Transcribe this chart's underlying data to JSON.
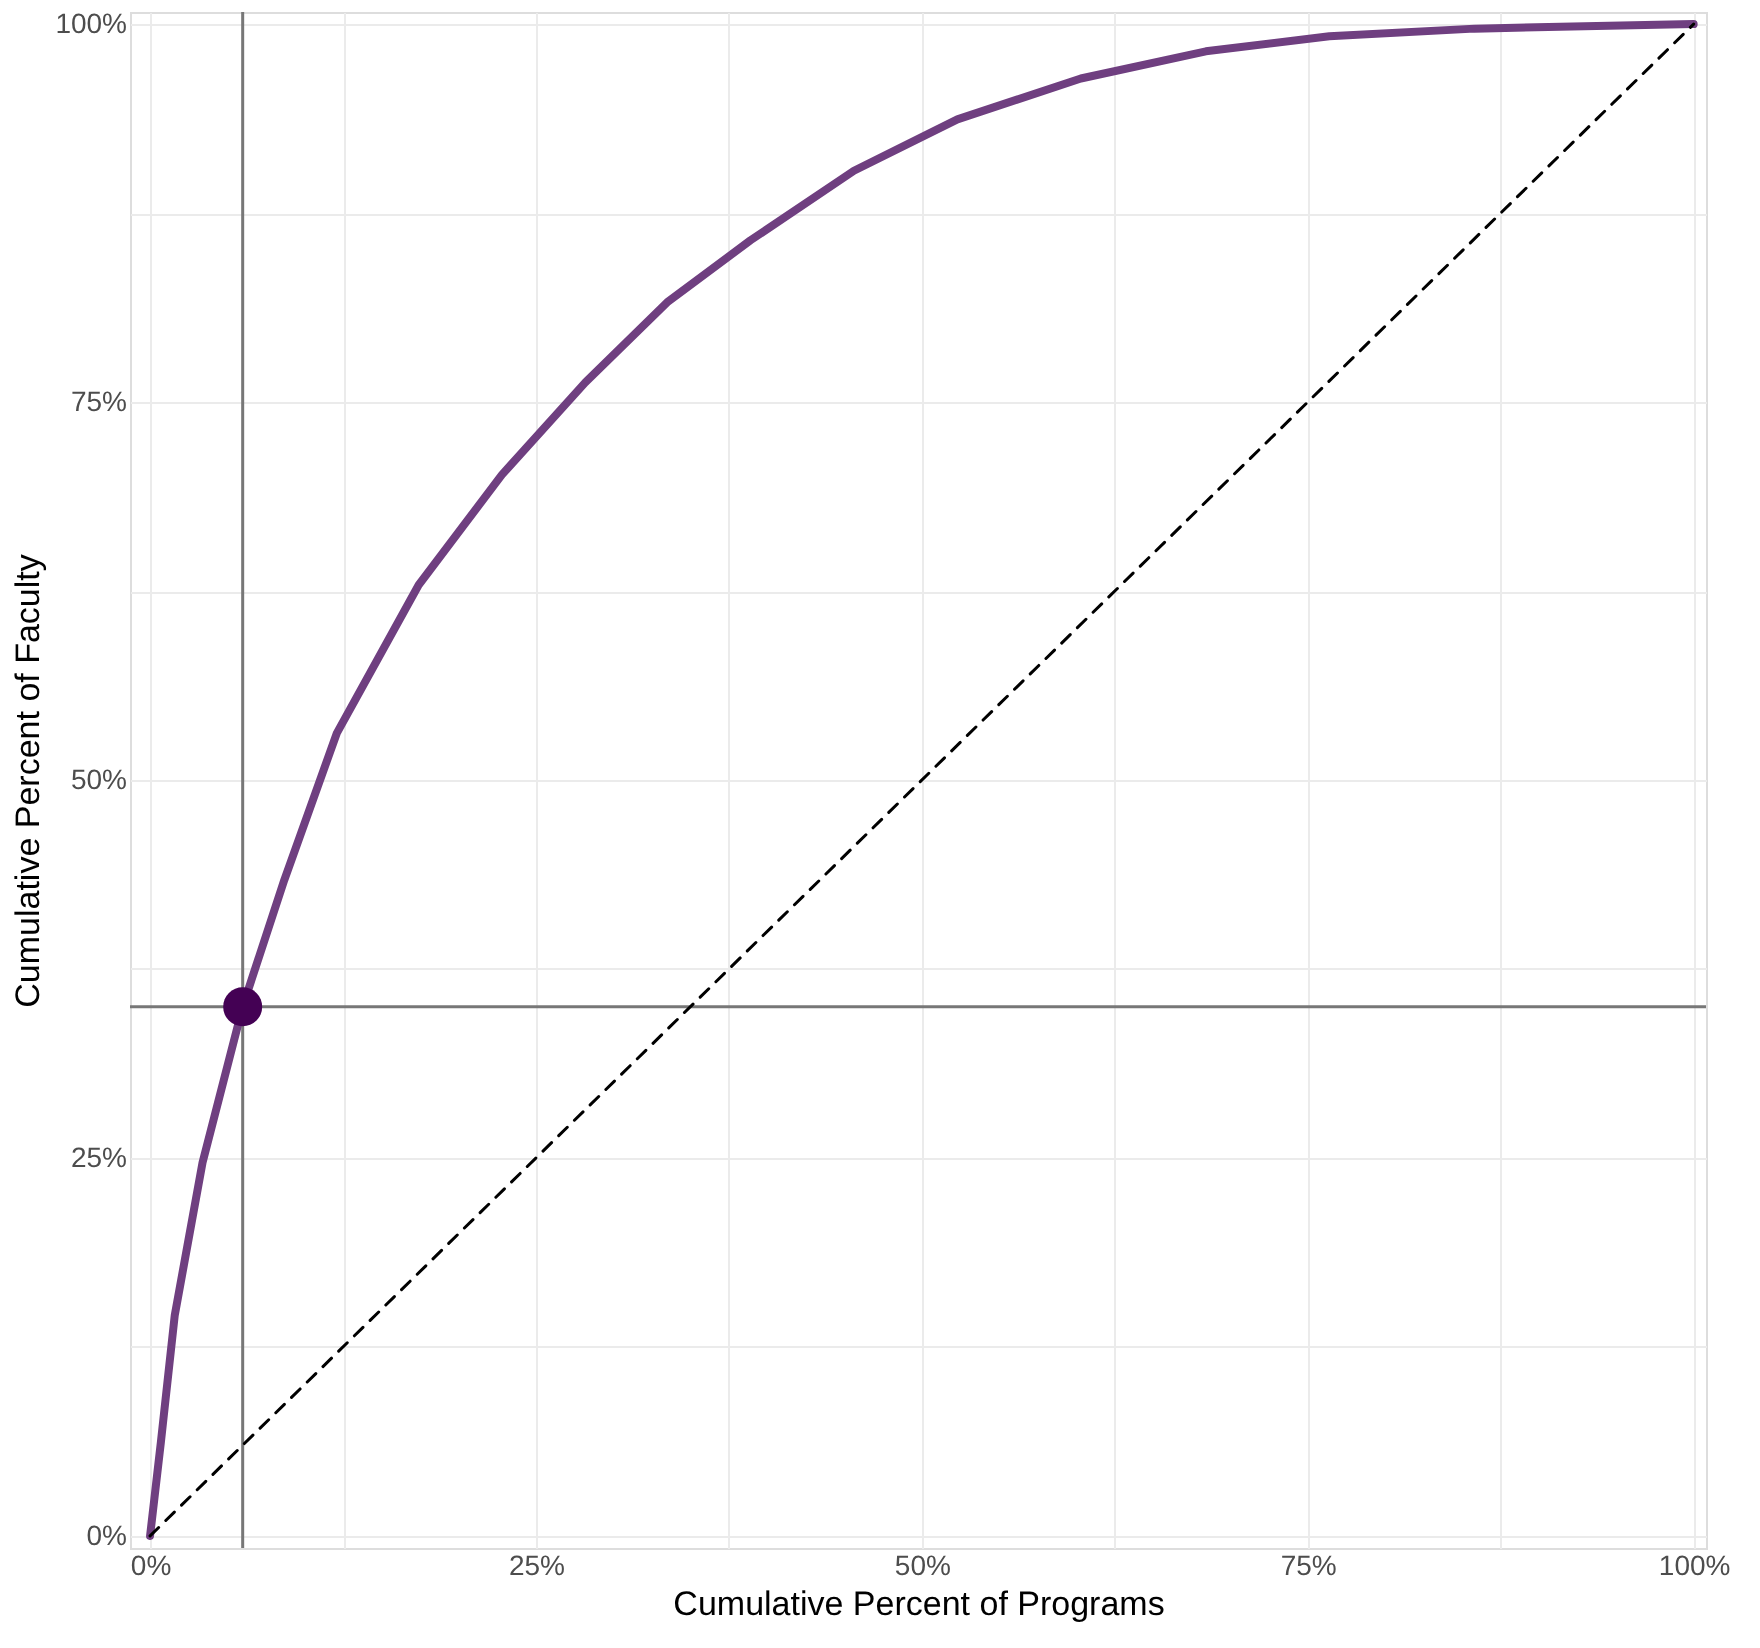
{
  "chart_data": {
    "type": "line",
    "xlabel": "Cumulative Percent of Programs",
    "ylabel": "Cumulative Percent of Faculty",
    "xlim": [
      -1.3,
      100.8
    ],
    "ylim": [
      -0.8,
      100.8
    ],
    "xticks": [
      {
        "value": 0,
        "label": "0%"
      },
      {
        "value": 12.5,
        "label": null
      },
      {
        "value": 25,
        "label": "25%"
      },
      {
        "value": 37.5,
        "label": null
      },
      {
        "value": 50,
        "label": "50%"
      },
      {
        "value": 62.5,
        "label": null
      },
      {
        "value": 75,
        "label": "75%"
      },
      {
        "value": 87.5,
        "label": null
      },
      {
        "value": 100,
        "label": "100%"
      }
    ],
    "yticks": [
      {
        "value": 0,
        "label": "0%"
      },
      {
        "value": 12.5,
        "label": null
      },
      {
        "value": 25,
        "label": "25%"
      },
      {
        "value": 37.5,
        "label": null
      },
      {
        "value": 50,
        "label": "50%"
      },
      {
        "value": 62.5,
        "label": null
      },
      {
        "value": 75,
        "label": "75%"
      },
      {
        "value": 87.5,
        "label": null
      },
      {
        "value": 100,
        "label": "100%"
      }
    ],
    "grid": true,
    "legend": false,
    "series": [
      {
        "color": "#6f3f80",
        "line_style": "solid",
        "x": [
          0,
          0.7,
          1.6,
          3.4,
          6.0,
          8.7,
          12.1,
          17.4,
          22.8,
          28.2,
          33.5,
          38.9,
          45.6,
          52.3,
          60.3,
          68.4,
          76.4,
          85.8,
          100
        ],
        "values": [
          0,
          6.2,
          14.6,
          24.7,
          35.0,
          43.4,
          53.1,
          62.9,
          70.2,
          76.3,
          81.6,
          85.7,
          90.3,
          93.7,
          96.4,
          98.2,
          99.2,
          99.7,
          100
        ]
      },
      {
        "type": "line",
        "color": "#000000",
        "line_style": "dashed",
        "x": [
          0,
          100
        ],
        "values": [
          0,
          100
        ]
      },
      {
        "type": "scatter",
        "color": "#440154",
        "marker": "circle",
        "x": [
          6.0
        ],
        "values": [
          35.0
        ]
      }
    ],
    "ref_lines": [
      {
        "axis": "x",
        "value": 6.0,
        "color": "#777777"
      },
      {
        "axis": "y",
        "value": 35.0,
        "color": "#777777"
      }
    ]
  }
}
